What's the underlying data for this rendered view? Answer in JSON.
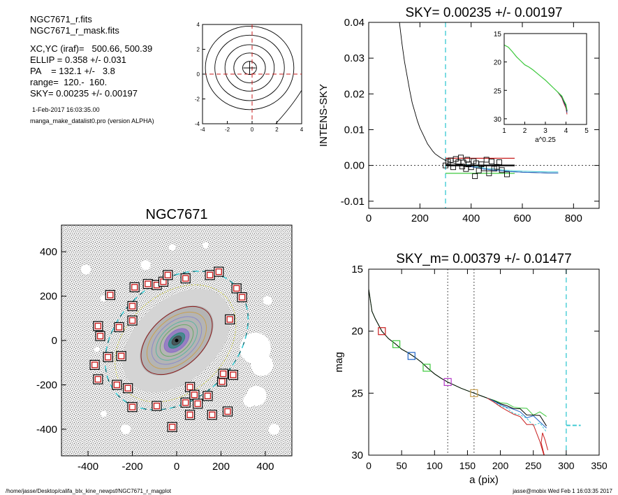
{
  "header": {
    "file": "NGC7671_r.fits",
    "mask": "NGC7671_r_mask.fits",
    "center": "XC,YC (iraf)=   500.66, 500.39",
    "ellip": "ELLIP = 0.358 +/- 0.031",
    "pa": "PA    = 132.1 +/-   3.8",
    "range": "range=  120.-  160.",
    "sky": "SKY= 0.00235 +/- 0.00197",
    "date": "1-Feb-2017 16:03:35.00",
    "program": "manga_make_datalist0.pro (version ALPHA)"
  },
  "footer": {
    "path": "/home/jasse/Desktop/califa_blx_kine_newpsf/NGC7671_r_magplot",
    "user": "jasse@mobix  Wed Feb  1 16:03:35 2017"
  },
  "colors": {
    "cyan": "#37c8d2",
    "red": "#c81e1e",
    "green": "#3cc83c",
    "blue": "#1e64c8",
    "dark": "#222222"
  },
  "chart_data": [
    {
      "id": "center-contours",
      "type": "contour",
      "xlim": [
        -4,
        4
      ],
      "ylim": [
        -4,
        4
      ],
      "xticks": [
        "-4",
        "-2",
        "0",
        "2",
        "4"
      ],
      "yticks": [
        "4",
        "2",
        "0",
        "-2",
        "-4"
      ],
      "contour_radii": [
        0.55,
        1.25,
        1.95,
        2.75,
        3.5
      ],
      "center": [
        -0.2,
        0.5
      ]
    },
    {
      "id": "sky-profile",
      "type": "line",
      "title": "SKY= 0.00235 +/- 0.00197",
      "ylabel": "INTENS-SKY",
      "xlim": [
        0,
        900
      ],
      "ylim": [
        -0.012,
        0.04
      ],
      "xticks": [
        "0",
        "200",
        "400",
        "600",
        "800"
      ],
      "yticks": [
        "0.04",
        "0.03",
        "0.02",
        "0.01",
        "0.00",
        "-0.01"
      ],
      "vline_x": 300,
      "profile": [
        [
          120,
          0.04
        ],
        [
          130,
          0.034
        ],
        [
          140,
          0.029
        ],
        [
          150,
          0.025
        ],
        [
          160,
          0.021
        ],
        [
          170,
          0.0175
        ],
        [
          180,
          0.015
        ],
        [
          190,
          0.0125
        ],
        [
          200,
          0.0105
        ],
        [
          210,
          0.009
        ],
        [
          220,
          0.0075
        ],
        [
          230,
          0.006
        ],
        [
          240,
          0.005
        ],
        [
          250,
          0.004
        ],
        [
          260,
          0.0032
        ],
        [
          270,
          0.0027
        ],
        [
          280,
          0.0022
        ],
        [
          290,
          0.0018
        ],
        [
          300,
          0.0014
        ],
        [
          320,
          0.0009
        ],
        [
          340,
          0.0005
        ],
        [
          360,
          0.0003
        ],
        [
          380,
          0.0
        ],
        [
          400,
          -0.0003
        ],
        [
          420,
          -0.0006
        ],
        [
          450,
          -0.001
        ],
        [
          500,
          -0.0014
        ],
        [
          550,
          -0.0017
        ],
        [
          600,
          -0.0019
        ],
        [
          650,
          -0.002
        ],
        [
          700,
          -0.0021
        ],
        [
          740,
          -0.0021
        ]
      ],
      "points": [
        [
          300,
          0.0
        ],
        [
          310,
          0.001
        ],
        [
          320,
          0.0014
        ],
        [
          330,
          -0.0005
        ],
        [
          340,
          0.0018
        ],
        [
          350,
          0.0009
        ],
        [
          360,
          0.0022
        ],
        [
          365,
          -0.0003
        ],
        [
          370,
          0.0008
        ],
        [
          380,
          -0.001
        ],
        [
          385,
          0.0016
        ],
        [
          390,
          0.0003
        ],
        [
          400,
          -0.0005
        ],
        [
          410,
          0.0012
        ],
        [
          415,
          -0.003
        ],
        [
          420,
          0.0006
        ],
        [
          430,
          -0.0014
        ],
        [
          440,
          0.0003
        ],
        [
          450,
          -0.0008
        ],
        [
          460,
          0.0016
        ],
        [
          470,
          -0.0022
        ],
        [
          480,
          0.0011
        ],
        [
          490,
          -0.0009
        ],
        [
          500,
          -0.0004
        ],
        [
          510,
          0.0009
        ],
        [
          520,
          -0.0013
        ],
        [
          540,
          -0.0025
        ]
      ],
      "segments": [
        {
          "color": "red",
          "y": 0.002,
          "x": [
            300,
            570
          ]
        },
        {
          "color": "black",
          "y": 0.0,
          "x": [
            300,
            570
          ]
        },
        {
          "color": "green",
          "y": -0.0022,
          "x": [
            300,
            570
          ]
        }
      ],
      "inset": {
        "xlabel": "a^0.25",
        "xlim": [
          1,
          5
        ],
        "ylim": [
          15,
          31
        ],
        "xticks": [
          "1",
          "2",
          "3",
          "4",
          "5"
        ],
        "yticks": [
          "15",
          "20",
          "25",
          "30"
        ],
        "curve": [
          [
            1.0,
            17.0
          ],
          [
            1.2,
            17.4
          ],
          [
            1.4,
            18.2
          ],
          [
            1.6,
            19.1
          ],
          [
            1.8,
            19.8
          ],
          [
            2.0,
            20.5
          ],
          [
            2.2,
            20.9
          ],
          [
            2.4,
            21.4
          ],
          [
            2.6,
            22.0
          ],
          [
            2.8,
            22.6
          ],
          [
            3.0,
            23.2
          ],
          [
            3.2,
            23.9
          ],
          [
            3.4,
            24.6
          ],
          [
            3.6,
            25.3
          ],
          [
            3.8,
            26.0
          ],
          [
            3.9,
            26.8
          ],
          [
            4.0,
            27.5
          ],
          [
            4.05,
            28.5
          ]
        ]
      }
    },
    {
      "id": "galaxy-image",
      "type": "image",
      "title": "NGC7671",
      "xlim": [
        -520,
        520
      ],
      "ylim": [
        -520,
        520
      ],
      "xticks": [
        "-400",
        "-200",
        "0",
        "200",
        "400"
      ],
      "yticks": [
        "400",
        "200",
        "0",
        "-200",
        "-400"
      ],
      "galaxy_pa_deg": 42,
      "masks": [
        [
          -300,
          205
        ],
        [
          -190,
          240
        ],
        [
          -130,
          255
        ],
        [
          -90,
          250
        ],
        [
          -60,
          265
        ],
        [
          -40,
          295
        ],
        [
          40,
          280
        ],
        [
          150,
          295
        ],
        [
          190,
          310
        ],
        [
          -355,
          65
        ],
        [
          -345,
          20
        ],
        [
          -200,
          155
        ],
        [
          -260,
          60
        ],
        [
          -200,
          90
        ],
        [
          -250,
          -70
        ],
        [
          -310,
          -75
        ],
        [
          -370,
          -110
        ],
        [
          -355,
          -175
        ],
        [
          -270,
          -200
        ],
        [
          -220,
          -215
        ],
        [
          -200,
          -300
        ],
        [
          -90,
          -295
        ],
        [
          40,
          -280
        ],
        [
          60,
          -210
        ],
        [
          80,
          -245
        ],
        [
          95,
          -285
        ],
        [
          140,
          -250
        ],
        [
          205,
          -185
        ],
        [
          210,
          -150
        ],
        [
          255,
          -155
        ],
        [
          270,
          235
        ],
        [
          295,
          195
        ],
        [
          240,
          95
        ],
        [
          230,
          -320
        ],
        [
          160,
          -335
        ],
        [
          60,
          -335
        ],
        [
          -20,
          -390
        ]
      ],
      "blobs": [
        [
          -140,
          340,
          22
        ],
        [
          -20,
          420,
          15
        ],
        [
          -330,
          190,
          14
        ],
        [
          -160,
          -200,
          18
        ],
        [
          -5,
          -150,
          12
        ],
        [
          -230,
          -400,
          22
        ],
        [
          -410,
          320,
          22
        ],
        [
          130,
          430,
          14
        ],
        [
          410,
          180,
          20
        ],
        [
          -330,
          -330,
          14
        ],
        [
          -360,
          -40,
          12
        ],
        [
          440,
          -400,
          25
        ]
      ],
      "big_blob": [
        [
          355,
          -35,
          70
        ],
        [
          385,
          -110,
          50
        ],
        [
          360,
          -250,
          45
        ],
        [
          330,
          -270,
          30
        ]
      ]
    },
    {
      "id": "mag-profile",
      "type": "line",
      "title": "SKY_m=  0.00379 +/- 0.01477",
      "xlabel": "a (pix)",
      "ylabel": "mag",
      "xlim": [
        0,
        350
      ],
      "ylim": [
        15,
        30
      ],
      "xticks": [
        "0",
        "50",
        "100",
        "150",
        "200",
        "250",
        "300",
        "350"
      ],
      "yticks": [
        "15",
        "20",
        "25",
        "30"
      ],
      "dotted_x": [
        120,
        160
      ],
      "sky_vline_x": 300,
      "sky_level": 27.6,
      "base": [
        [
          0,
          16.6
        ],
        [
          5,
          18.4
        ],
        [
          10,
          19.0
        ],
        [
          20,
          20.0
        ],
        [
          30,
          20.6
        ],
        [
          40,
          21.0
        ],
        [
          50,
          21.45
        ],
        [
          60,
          21.75
        ],
        [
          70,
          22.1
        ],
        [
          80,
          22.5
        ],
        [
          90,
          23.0
        ],
        [
          100,
          23.45
        ],
        [
          110,
          23.8
        ],
        [
          120,
          24.1
        ],
        [
          130,
          24.35
        ],
        [
          140,
          24.6
        ],
        [
          150,
          24.8
        ],
        [
          160,
          25.0
        ],
        [
          170,
          25.2
        ],
        [
          180,
          25.4
        ],
        [
          190,
          25.6
        ],
        [
          200,
          25.85
        ],
        [
          210,
          26.0
        ],
        [
          220,
          26.2
        ],
        [
          230,
          26.4
        ],
        [
          240,
          26.6
        ],
        [
          250,
          26.8
        ],
        [
          260,
          27.0
        ],
        [
          270,
          27.3
        ]
      ],
      "squares": [
        [
          20,
          20.0,
          "#c81e1e"
        ],
        [
          42,
          21.05,
          "#3cc83c"
        ],
        [
          65,
          22.0,
          "#1e64c8"
        ],
        [
          88,
          22.95,
          "#3cc83c"
        ],
        [
          120,
          24.1,
          "#b43cc8"
        ],
        [
          160,
          25.0,
          "#c8a050"
        ]
      ],
      "curves": [
        {
          "color": "green",
          "offset": -0.35,
          "from": 0
        },
        {
          "color": "black",
          "offset": 0.0,
          "from": 0
        },
        {
          "color": "blue",
          "offset": 0.3,
          "from": 180
        },
        {
          "color": "cyan",
          "offset": 0.75,
          "from": 180
        },
        {
          "color": "red",
          "offset": 1.1,
          "from": 180
        }
      ]
    }
  ]
}
